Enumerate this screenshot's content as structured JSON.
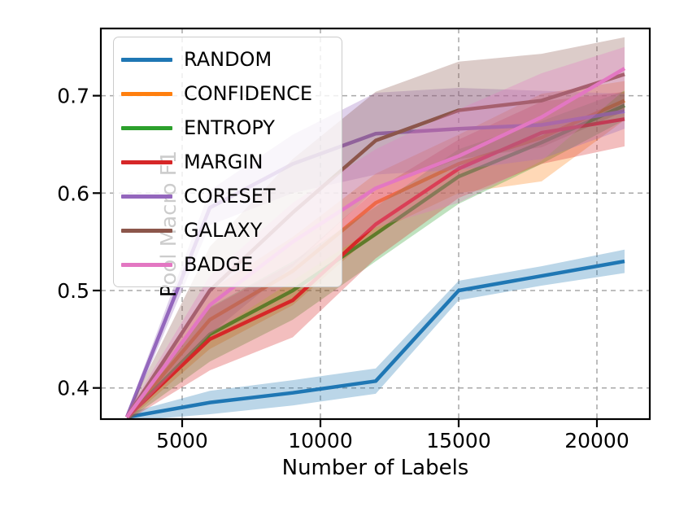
{
  "figure": {
    "background": "#ffffff"
  },
  "chart_data": {
    "type": "line",
    "title": "",
    "xlabel": "Number of Labels",
    "ylabel": "Pool Macro F1",
    "x": [
      3000,
      6000,
      9000,
      12000,
      15000,
      18000,
      21000
    ],
    "xlim": [
      2059,
      21912
    ],
    "ylim": [
      0.368,
      0.769
    ],
    "xticks": [
      5000,
      10000,
      15000,
      20000
    ],
    "xtick_labels": [
      "5000",
      "10000",
      "15000",
      "20000"
    ],
    "yticks": [
      0.4,
      0.5,
      0.6,
      0.7
    ],
    "ytick_labels": [
      "0.4",
      "0.5",
      "0.6",
      "0.7"
    ],
    "grid": true,
    "grid_style": "dashed",
    "grid_color": "#a8a8a8",
    "legend_position": "upper-left",
    "band_alpha": 0.3,
    "series": [
      {
        "name": "RANDOM",
        "color": "#1f77b4",
        "values": [
          0.37,
          0.385,
          0.395,
          0.407,
          0.5,
          0.515,
          0.53
        ],
        "band": [
          0.004,
          0.012,
          0.013,
          0.013,
          0.01,
          0.01,
          0.012
        ]
      },
      {
        "name": "CONFIDENCE",
        "color": "#ff7f0e",
        "values": [
          0.37,
          0.47,
          0.52,
          0.59,
          0.63,
          0.657,
          0.695
        ],
        "band": [
          0.004,
          0.03,
          0.035,
          0.03,
          0.03,
          0.045,
          0.02
        ]
      },
      {
        "name": "ENTROPY",
        "color": "#2ca02c",
        "values": [
          0.37,
          0.455,
          0.5,
          0.558,
          0.617,
          0.652,
          0.69
        ],
        "band": [
          0.004,
          0.028,
          0.03,
          0.028,
          0.028,
          0.022,
          0.015
        ]
      },
      {
        "name": "MARGIN",
        "color": "#d62728",
        "values": [
          0.37,
          0.45,
          0.49,
          0.568,
          0.625,
          0.662,
          0.676
        ],
        "band": [
          0.004,
          0.032,
          0.038,
          0.035,
          0.03,
          0.032,
          0.028
        ]
      },
      {
        "name": "CORESET",
        "color": "#9467bd",
        "values": [
          0.37,
          0.585,
          0.63,
          0.661,
          0.666,
          0.67,
          0.684
        ],
        "band": [
          0.004,
          0.018,
          0.03,
          0.042,
          0.042,
          0.035,
          0.018
        ]
      },
      {
        "name": "GALAXY",
        "color": "#8c564b",
        "values": [
          0.37,
          0.5,
          0.58,
          0.654,
          0.685,
          0.695,
          0.722
        ],
        "band": [
          0.004,
          0.045,
          0.055,
          0.05,
          0.05,
          0.048,
          0.038
        ]
      },
      {
        "name": "BADGE",
        "color": "#e377c2",
        "values": [
          0.37,
          0.485,
          0.55,
          0.605,
          0.638,
          0.678,
          0.728
        ],
        "band": [
          0.004,
          0.03,
          0.04,
          0.04,
          0.048,
          0.045,
          0.022
        ]
      }
    ]
  }
}
